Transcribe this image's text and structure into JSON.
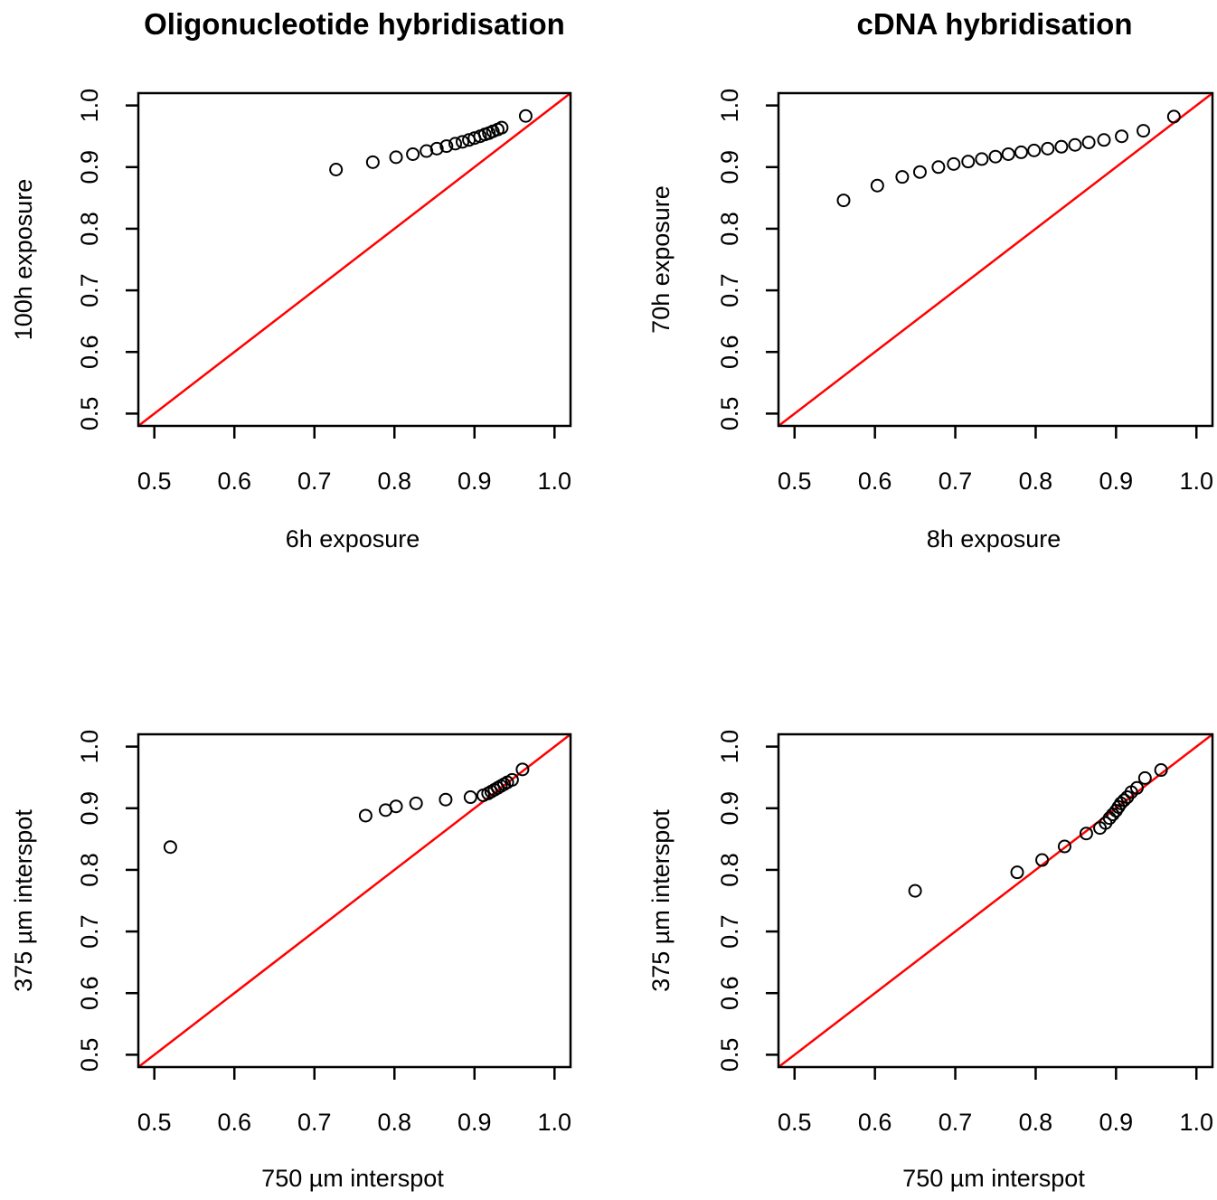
{
  "chart_data": [
    {
      "type": "scatter",
      "title": "Oligonucleotide hybridisation",
      "xlabel": "6h exposure",
      "ylabel": "100h exposure",
      "xlim": [
        0.48,
        1.02
      ],
      "ylim": [
        0.48,
        1.02
      ],
      "xticks": [
        "0.5",
        "0.6",
        "0.7",
        "0.8",
        "0.9",
        "1.0"
      ],
      "yticks": [
        "0.5",
        "0.6",
        "0.7",
        "0.8",
        "0.9",
        "1.0"
      ],
      "reference_line": {
        "slope": 1,
        "intercept": 0,
        "color": "#ff0000"
      },
      "point_color": "#000000",
      "x": [
        0.727,
        0.773,
        0.802,
        0.823,
        0.84,
        0.853,
        0.865,
        0.876,
        0.885,
        0.893,
        0.9,
        0.907,
        0.913,
        0.918,
        0.923,
        0.929,
        0.934,
        0.964
      ],
      "y": [
        0.896,
        0.908,
        0.916,
        0.921,
        0.926,
        0.93,
        0.934,
        0.938,
        0.941,
        0.944,
        0.947,
        0.95,
        0.953,
        0.955,
        0.958,
        0.961,
        0.964,
        0.983
      ]
    },
    {
      "type": "scatter",
      "title": "cDNA hybridisation",
      "xlabel": "8h exposure",
      "ylabel": "70h exposure",
      "xlim": [
        0.48,
        1.02
      ],
      "ylim": [
        0.48,
        1.02
      ],
      "xticks": [
        "0.5",
        "0.6",
        "0.7",
        "0.8",
        "0.9",
        "1.0"
      ],
      "yticks": [
        "0.5",
        "0.6",
        "0.7",
        "0.8",
        "0.9",
        "1.0"
      ],
      "reference_line": {
        "slope": 1,
        "intercept": 0,
        "color": "#ff0000"
      },
      "point_color": "#000000",
      "x": [
        0.561,
        0.603,
        0.634,
        0.656,
        0.679,
        0.698,
        0.716,
        0.733,
        0.75,
        0.766,
        0.782,
        0.798,
        0.815,
        0.832,
        0.849,
        0.866,
        0.885,
        0.907,
        0.934,
        0.972
      ],
      "y": [
        0.846,
        0.87,
        0.884,
        0.892,
        0.9,
        0.905,
        0.909,
        0.913,
        0.917,
        0.921,
        0.924,
        0.927,
        0.93,
        0.933,
        0.936,
        0.94,
        0.944,
        0.95,
        0.959,
        0.982
      ]
    },
    {
      "type": "scatter",
      "title": "",
      "xlabel": "750 µm interspot",
      "ylabel": "375 µm interspot",
      "xlim": [
        0.48,
        1.02
      ],
      "ylim": [
        0.48,
        1.02
      ],
      "xticks": [
        "0.5",
        "0.6",
        "0.7",
        "0.8",
        "0.9",
        "1.0"
      ],
      "yticks": [
        "0.5",
        "0.6",
        "0.7",
        "0.8",
        "0.9",
        "1.0"
      ],
      "reference_line": {
        "slope": 1,
        "intercept": 0,
        "color": "#ff0000"
      },
      "point_color": "#000000",
      "x": [
        0.52,
        0.764,
        0.789,
        0.802,
        0.827,
        0.864,
        0.895,
        0.911,
        0.917,
        0.921,
        0.925,
        0.929,
        0.933,
        0.937,
        0.941,
        0.947,
        0.96
      ],
      "y": [
        0.837,
        0.888,
        0.897,
        0.903,
        0.908,
        0.914,
        0.918,
        0.921,
        0.924,
        0.927,
        0.93,
        0.933,
        0.936,
        0.939,
        0.942,
        0.946,
        0.963
      ]
    },
    {
      "type": "scatter",
      "title": "",
      "xlabel": "750 µm interspot",
      "ylabel": "375 µm interspot",
      "xlim": [
        0.48,
        1.02
      ],
      "ylim": [
        0.48,
        1.02
      ],
      "xticks": [
        "0.5",
        "0.6",
        "0.7",
        "0.8",
        "0.9",
        "1.0"
      ],
      "yticks": [
        "0.5",
        "0.6",
        "0.7",
        "0.8",
        "0.9",
        "1.0"
      ],
      "reference_line": {
        "slope": 1,
        "intercept": 0,
        "color": "#ff0000"
      },
      "point_color": "#000000",
      "x": [
        0.65,
        0.777,
        0.808,
        0.836,
        0.863,
        0.88,
        0.887,
        0.892,
        0.896,
        0.9,
        0.903,
        0.906,
        0.91,
        0.914,
        0.919,
        0.926,
        0.936,
        0.956
      ],
      "y": [
        0.766,
        0.796,
        0.816,
        0.838,
        0.859,
        0.868,
        0.876,
        0.884,
        0.89,
        0.896,
        0.902,
        0.908,
        0.913,
        0.918,
        0.926,
        0.933,
        0.949,
        0.962
      ]
    }
  ]
}
